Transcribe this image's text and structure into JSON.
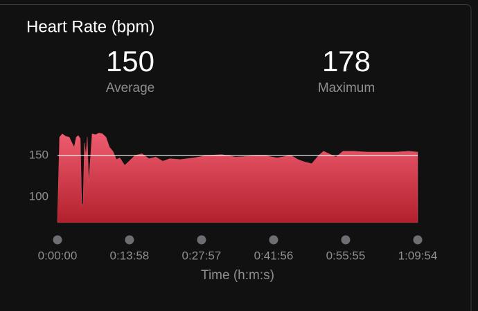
{
  "chart_data": {
    "type": "area",
    "title": "Heart Rate (bpm)",
    "summary": [
      {
        "value": 150,
        "label": "Average"
      },
      {
        "value": 178,
        "label": "Maximum"
      }
    ],
    "x_label": "Time (h:m:s)",
    "x": [
      0,
      24,
      56,
      97,
      137,
      169,
      194,
      218,
      242,
      266,
      282,
      298,
      314,
      331,
      347,
      363,
      379,
      403,
      444,
      484,
      524,
      565,
      605,
      645,
      686,
      726,
      782,
      823,
      903,
      984,
      1065,
      1145,
      1226,
      1307,
      1428,
      1589,
      1750,
      1912,
      2073,
      2234,
      2395,
      2557,
      2718,
      2799,
      2879,
      2960,
      3041,
      3097,
      3162,
      3242,
      3323,
      3444,
      3605,
      3766,
      3928,
      4089,
      4194
    ],
    "series": [
      {
        "name": "Heart Rate",
        "color": "#e0505f",
        "values": [
          72,
          172,
          176,
          173,
          172,
          165,
          160,
          172,
          174,
          170,
          90,
          92,
          165,
          150,
          172,
          117,
          140,
          176,
          175,
          177,
          176,
          172,
          160,
          155,
          145,
          147,
          138,
          142,
          150,
          152,
          146,
          148,
          143,
          146,
          145,
          147,
          150,
          151,
          148,
          149,
          150,
          147,
          150,
          145,
          142,
          140,
          150,
          155,
          152,
          148,
          155,
          155,
          154,
          154,
          154,
          155,
          154
        ]
      }
    ],
    "xlim": [
      0,
      4194
    ],
    "xticks": [
      {
        "value": 0,
        "label": "0:00:00"
      },
      {
        "value": 838,
        "label": "0:13:58"
      },
      {
        "value": 1677,
        "label": "0:27:57"
      },
      {
        "value": 2516,
        "label": "0:41:56"
      },
      {
        "value": 3355,
        "label": "0:55:55"
      },
      {
        "value": 4194,
        "label": "1:09:54"
      }
    ],
    "ylim": [
      69,
      180
    ],
    "yticks": [
      100,
      150
    ]
  }
}
